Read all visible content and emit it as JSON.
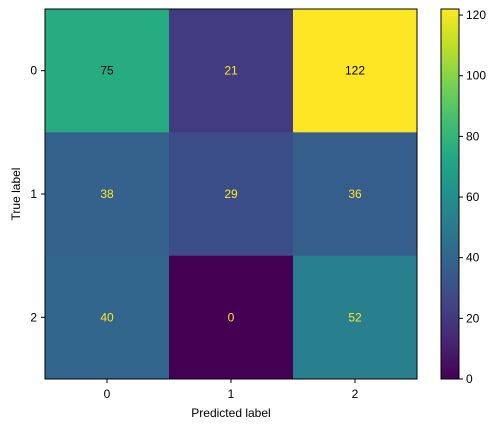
{
  "chart_data": {
    "type": "heatmap",
    "title": "",
    "xlabel": "Predicted label",
    "ylabel": "True label",
    "x_categories": [
      "0",
      "1",
      "2"
    ],
    "y_categories": [
      "0",
      "1",
      "2"
    ],
    "values": [
      [
        75,
        21,
        122
      ],
      [
        38,
        29,
        36
      ],
      [
        40,
        0,
        52
      ]
    ],
    "colormap": "viridis",
    "value_range": [
      0,
      122
    ],
    "colorbar": {
      "ticks": [
        "0",
        "20",
        "40",
        "60",
        "80",
        "100",
        "120"
      ],
      "tick_values": [
        0,
        20,
        40,
        60,
        80,
        100,
        120
      ]
    },
    "text_color_dark": "#000000",
    "text_color_light": "#fde725"
  }
}
